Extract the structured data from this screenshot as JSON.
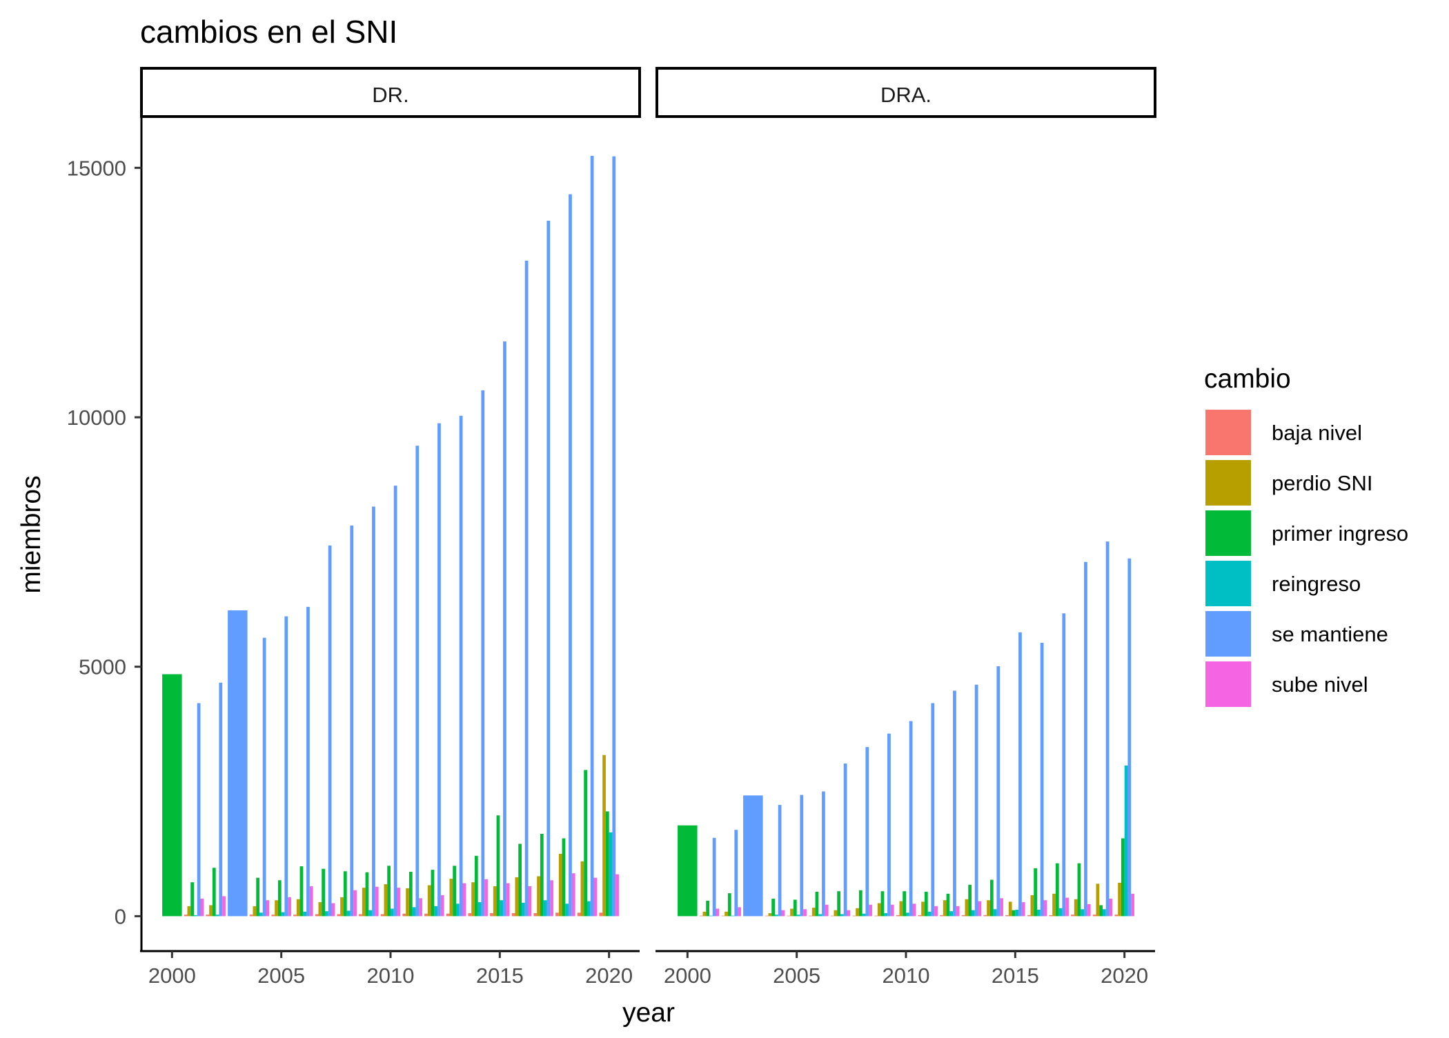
{
  "chart_data": {
    "type": "bar",
    "title": "cambios en el SNI",
    "xlabel": "year",
    "ylabel": "miembros",
    "x_ticks": [
      "2000",
      "2005",
      "2010",
      "2015",
      "2020"
    ],
    "y_ticks": [
      "0",
      "5000",
      "10000",
      "15000"
    ],
    "xlim": [
      1998.6,
      2021.4
    ],
    "ylim": [
      -700,
      16000
    ],
    "legend": {
      "title": "cambio",
      "position": "right",
      "entries": [
        {
          "name": "baja nivel",
          "color": "#F8766D"
        },
        {
          "name": "perdio SNI",
          "color": "#B79F00"
        },
        {
          "name": "primer ingreso",
          "color": "#00BA38"
        },
        {
          "name": "reingreso",
          "color": "#00BFC4"
        },
        {
          "name": "se mantiene",
          "color": "#619CFF"
        },
        {
          "name": "sube nivel",
          "color": "#F564E3"
        }
      ]
    },
    "series_order": [
      "baja nivel",
      "perdio SNI",
      "primer ingreso",
      "reingreso",
      "se mantiene",
      "sube nivel"
    ],
    "x": [
      2000,
      2001,
      2002,
      2003,
      2004,
      2005,
      2006,
      2007,
      2008,
      2009,
      2010,
      2011,
      2012,
      2013,
      2014,
      2015,
      2016,
      2017,
      2018,
      2019,
      2020
    ],
    "panels": [
      {
        "strip": "DR.",
        "bars": {
          "2000": {
            "primer ingreso": 4850
          },
          "2001": {
            "baja nivel": 30,
            "perdio SNI": 200,
            "primer ingreso": 680,
            "reingreso": 20,
            "se mantiene": 4270,
            "sube nivel": 350
          },
          "2002": {
            "baja nivel": 30,
            "perdio SNI": 220,
            "primer ingreso": 970,
            "reingreso": 30,
            "se mantiene": 4680,
            "sube nivel": 400
          },
          "2003": {
            "se mantiene": 6130
          },
          "2004": {
            "baja nivel": 30,
            "perdio SNI": 200,
            "primer ingreso": 770,
            "reingreso": 70,
            "se mantiene": 5580,
            "sube nivel": 320
          },
          "2005": {
            "baja nivel": 30,
            "perdio SNI": 320,
            "primer ingreso": 720,
            "reingreso": 80,
            "se mantiene": 6010,
            "sube nivel": 380
          },
          "2006": {
            "baja nivel": 30,
            "perdio SNI": 340,
            "primer ingreso": 1000,
            "reingreso": 90,
            "se mantiene": 6200,
            "sube nivel": 600
          },
          "2007": {
            "baja nivel": 40,
            "perdio SNI": 280,
            "primer ingreso": 950,
            "reingreso": 100,
            "se mantiene": 7430,
            "sube nivel": 260
          },
          "2008": {
            "baja nivel": 40,
            "perdio SNI": 380,
            "primer ingreso": 900,
            "reingreso": 110,
            "se mantiene": 7830,
            "sube nivel": 520
          },
          "2009": {
            "baja nivel": 40,
            "perdio SNI": 570,
            "primer ingreso": 880,
            "reingreso": 120,
            "se mantiene": 8210,
            "sube nivel": 590
          },
          "2010": {
            "baja nivel": 40,
            "perdio SNI": 640,
            "primer ingreso": 1010,
            "reingreso": 150,
            "se mantiene": 8630,
            "sube nivel": 570
          },
          "2011": {
            "baja nivel": 50,
            "perdio SNI": 560,
            "primer ingreso": 890,
            "reingreso": 180,
            "se mantiene": 9430,
            "sube nivel": 360
          },
          "2012": {
            "baja nivel": 50,
            "perdio SNI": 620,
            "primer ingreso": 930,
            "reingreso": 200,
            "se mantiene": 9880,
            "sube nivel": 420
          },
          "2013": {
            "baja nivel": 50,
            "perdio SNI": 750,
            "primer ingreso": 1010,
            "reingreso": 250,
            "se mantiene": 10030,
            "sube nivel": 660
          },
          "2014": {
            "baja nivel": 60,
            "perdio SNI": 680,
            "primer ingreso": 1210,
            "reingreso": 280,
            "se mantiene": 10540,
            "sube nivel": 740
          },
          "2015": {
            "baja nivel": 60,
            "perdio SNI": 600,
            "primer ingreso": 2020,
            "reingreso": 320,
            "se mantiene": 11520,
            "sube nivel": 660
          },
          "2016": {
            "baja nivel": 60,
            "perdio SNI": 780,
            "primer ingreso": 1450,
            "reingreso": 270,
            "se mantiene": 13140,
            "sube nivel": 600
          },
          "2017": {
            "baja nivel": 60,
            "perdio SNI": 800,
            "primer ingreso": 1650,
            "reingreso": 320,
            "se mantiene": 13940,
            "sube nivel": 720
          },
          "2018": {
            "baja nivel": 70,
            "perdio SNI": 1250,
            "primer ingreso": 1560,
            "reingreso": 250,
            "se mantiene": 14470,
            "sube nivel": 860
          },
          "2019": {
            "baja nivel": 70,
            "perdio SNI": 1100,
            "primer ingreso": 2930,
            "reingreso": 300,
            "se mantiene": 15240,
            "sube nivel": 770
          },
          "2020": {
            "baja nivel": 70,
            "perdio SNI": 3230,
            "primer ingreso": 2100,
            "reingreso": 1680,
            "se mantiene": 15230,
            "sube nivel": 840
          }
        }
      },
      {
        "strip": "DRA.",
        "bars": {
          "2000": {
            "primer ingreso": 1820
          },
          "2001": {
            "baja nivel": 10,
            "perdio SNI": 90,
            "primer ingreso": 310,
            "reingreso": 10,
            "se mantiene": 1570,
            "sube nivel": 150
          },
          "2002": {
            "baja nivel": 10,
            "perdio SNI": 90,
            "primer ingreso": 460,
            "reingreso": 10,
            "se mantiene": 1730,
            "sube nivel": 180
          },
          "2003": {
            "se mantiene": 2420
          },
          "2004": {
            "baja nivel": 10,
            "perdio SNI": 60,
            "primer ingreso": 350,
            "reingreso": 30,
            "se mantiene": 2230,
            "sube nivel": 120
          },
          "2005": {
            "baja nivel": 10,
            "perdio SNI": 150,
            "primer ingreso": 330,
            "reingreso": 30,
            "se mantiene": 2430,
            "sube nivel": 140
          },
          "2006": {
            "baja nivel": 10,
            "perdio SNI": 170,
            "primer ingreso": 490,
            "reingreso": 40,
            "se mantiene": 2500,
            "sube nivel": 230
          },
          "2007": {
            "baja nivel": 10,
            "perdio SNI": 120,
            "primer ingreso": 500,
            "reingreso": 40,
            "se mantiene": 3060,
            "sube nivel": 120
          },
          "2008": {
            "baja nivel": 10,
            "perdio SNI": 160,
            "primer ingreso": 520,
            "reingreso": 50,
            "se mantiene": 3390,
            "sube nivel": 230
          },
          "2009": {
            "baja nivel": 10,
            "perdio SNI": 260,
            "primer ingreso": 500,
            "reingreso": 60,
            "se mantiene": 3660,
            "sube nivel": 230
          },
          "2010": {
            "baja nivel": 20,
            "perdio SNI": 300,
            "primer ingreso": 500,
            "reingreso": 70,
            "se mantiene": 3910,
            "sube nivel": 250
          },
          "2011": {
            "baja nivel": 20,
            "perdio SNI": 290,
            "primer ingreso": 490,
            "reingreso": 90,
            "se mantiene": 4270,
            "sube nivel": 200
          },
          "2012": {
            "baja nivel": 20,
            "perdio SNI": 320,
            "primer ingreso": 450,
            "reingreso": 100,
            "se mantiene": 4520,
            "sube nivel": 200
          },
          "2013": {
            "baja nivel": 20,
            "perdio SNI": 340,
            "primer ingreso": 630,
            "reingreso": 120,
            "se mantiene": 4640,
            "sube nivel": 300
          },
          "2014": {
            "baja nivel": 20,
            "perdio SNI": 320,
            "primer ingreso": 730,
            "reingreso": 140,
            "se mantiene": 5010,
            "sube nivel": 360
          },
          "2015": {
            "baja nivel": 20,
            "perdio SNI": 290,
            "primer ingreso": 120,
            "reingreso": 130,
            "se mantiene": 5690,
            "sube nivel": 280
          },
          "2016": {
            "baja nivel": 20,
            "perdio SNI": 420,
            "primer ingreso": 960,
            "reingreso": 130,
            "se mantiene": 5480,
            "sube nivel": 320
          },
          "2017": {
            "baja nivel": 20,
            "perdio SNI": 450,
            "primer ingreso": 1060,
            "reingreso": 160,
            "se mantiene": 6070,
            "sube nivel": 370
          },
          "2018": {
            "baja nivel": 30,
            "perdio SNI": 340,
            "primer ingreso": 1060,
            "reingreso": 140,
            "se mantiene": 7100,
            "sube nivel": 240
          },
          "2019": {
            "baja nivel": 30,
            "perdio SNI": 650,
            "primer ingreso": 220,
            "reingreso": 140,
            "se mantiene": 7510,
            "sube nivel": 350
          },
          "2020": {
            "baja nivel": 30,
            "perdio SNI": 670,
            "primer ingreso": 1560,
            "reingreso": 3020,
            "se mantiene": 7170,
            "sube nivel": 450
          }
        }
      }
    ]
  }
}
